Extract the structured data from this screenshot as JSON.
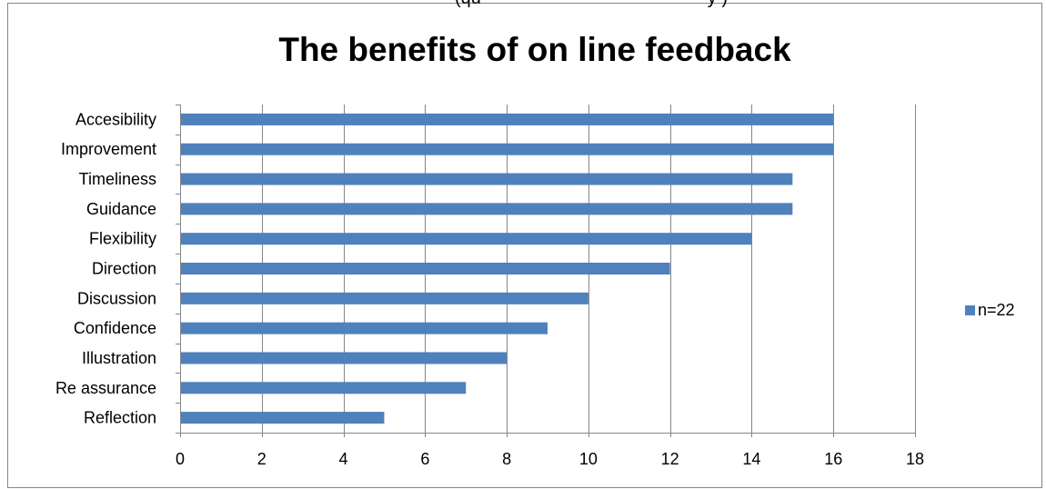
{
  "top_text": "(qu",
  "top_text_right": "y )",
  "chart_data": {
    "type": "bar",
    "orientation": "horizontal",
    "title": "The benefits of on line feedback",
    "categories": [
      "Accesibility",
      "Improvement",
      "Timeliness",
      "Guidance",
      "Flexibility",
      "Direction",
      "Discussion",
      "Confidence",
      "Illustration",
      "Re assurance",
      "Reflection"
    ],
    "series": [
      {
        "name": "n=22",
        "values": [
          16,
          16,
          15,
          15,
          14,
          12,
          10,
          9,
          8,
          7,
          5
        ]
      }
    ],
    "xlim": [
      0,
      18
    ],
    "xticks": [
      "0",
      "2",
      "4",
      "6",
      "8",
      "10",
      "12",
      "14",
      "16",
      "18"
    ],
    "xlabel": "",
    "ylabel": "",
    "grid": "vertical major gridlines",
    "legend_position": "right",
    "colors": {
      "bar": "#4F81BD",
      "grid": "#868686",
      "border": "#868686",
      "text": "#000000"
    }
  }
}
